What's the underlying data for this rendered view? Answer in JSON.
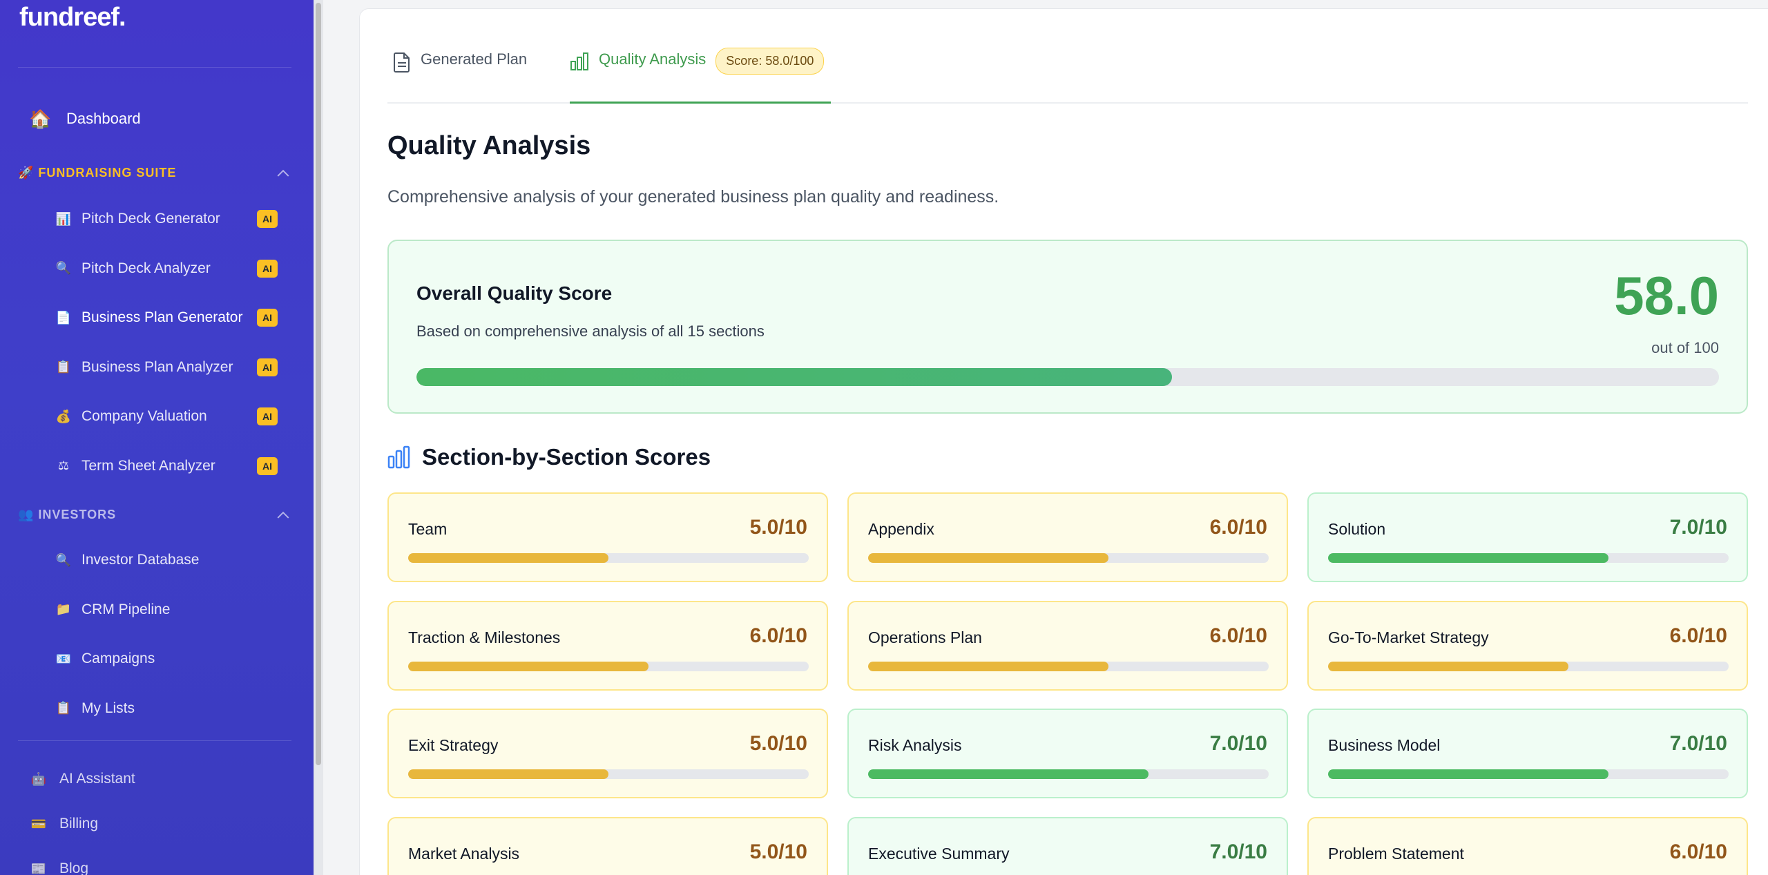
{
  "app": {
    "logo": "fundreef."
  },
  "sidebar": {
    "dashboard": "Dashboard",
    "fundraising_header": "FUNDRAISING SUITE",
    "fundraising_items": [
      {
        "label": "Pitch Deck Generator",
        "badge": "AI",
        "icon": "📊"
      },
      {
        "label": "Pitch Deck Analyzer",
        "badge": "AI",
        "icon": "🔍"
      },
      {
        "label": "Business Plan Generator",
        "badge": "AI",
        "icon": "📄"
      },
      {
        "label": "Business Plan Analyzer",
        "badge": "AI",
        "icon": "📋"
      },
      {
        "label": "Company Valuation",
        "badge": "AI",
        "icon": "💰"
      },
      {
        "label": "Term Sheet Analyzer",
        "badge": "AI",
        "icon": "⚖"
      }
    ],
    "investors_header": "INVESTORS",
    "investor_items": [
      {
        "label": "Investor Database",
        "icon": "🔍"
      },
      {
        "label": "CRM Pipeline",
        "icon": "📁"
      },
      {
        "label": "Campaigns",
        "icon": "📧"
      },
      {
        "label": "My Lists",
        "icon": "📋"
      }
    ],
    "bottom_items": [
      {
        "label": "AI Assistant",
        "icon": "🤖"
      },
      {
        "label": "Billing",
        "icon": "💳"
      },
      {
        "label": "Blog",
        "icon": "📰"
      }
    ]
  },
  "tabs": {
    "generated_plan": "Generated Plan",
    "quality_analysis": "Quality Analysis",
    "score_badge": "Score: 58.0/100"
  },
  "quality": {
    "title": "Quality Analysis",
    "description": "Comprehensive analysis of your generated business plan quality and readiness.",
    "overall_title": "Overall Quality Score",
    "overall_subtitle": "Based on comprehensive analysis of all 15 sections",
    "overall_score": "58.0",
    "overall_out_of": "out of 100",
    "overall_fraction": 0.58
  },
  "sections": {
    "title": "Section-by-Section Scores",
    "cards": [
      {
        "name": "Team",
        "score": "5.0/10",
        "value": 5,
        "tone": "yellow"
      },
      {
        "name": "Appendix",
        "score": "6.0/10",
        "value": 6,
        "tone": "yellow"
      },
      {
        "name": "Solution",
        "score": "7.0/10",
        "value": 7,
        "tone": "green"
      },
      {
        "name": "Traction & Milestones",
        "score": "6.0/10",
        "value": 6,
        "tone": "yellow"
      },
      {
        "name": "Operations Plan",
        "score": "6.0/10",
        "value": 6,
        "tone": "yellow"
      },
      {
        "name": "Go-To-Market Strategy",
        "score": "6.0/10",
        "value": 6,
        "tone": "yellow"
      },
      {
        "name": "Exit Strategy",
        "score": "5.0/10",
        "value": 5,
        "tone": "yellow"
      },
      {
        "name": "Risk Analysis",
        "score": "7.0/10",
        "value": 7,
        "tone": "green"
      },
      {
        "name": "Business Model",
        "score": "7.0/10",
        "value": 7,
        "tone": "green"
      },
      {
        "name": "Market Analysis",
        "score": "5.0/10",
        "value": 5,
        "tone": "yellow"
      },
      {
        "name": "Executive Summary",
        "score": "7.0/10",
        "value": 7,
        "tone": "green"
      },
      {
        "name": "Problem Statement",
        "score": "6.0/10",
        "value": 6,
        "tone": "yellow"
      }
    ]
  },
  "colors": {
    "sidebar": "#4338ca",
    "accent_green": "#3fa355",
    "badge_yellow": "#fbbf24"
  }
}
